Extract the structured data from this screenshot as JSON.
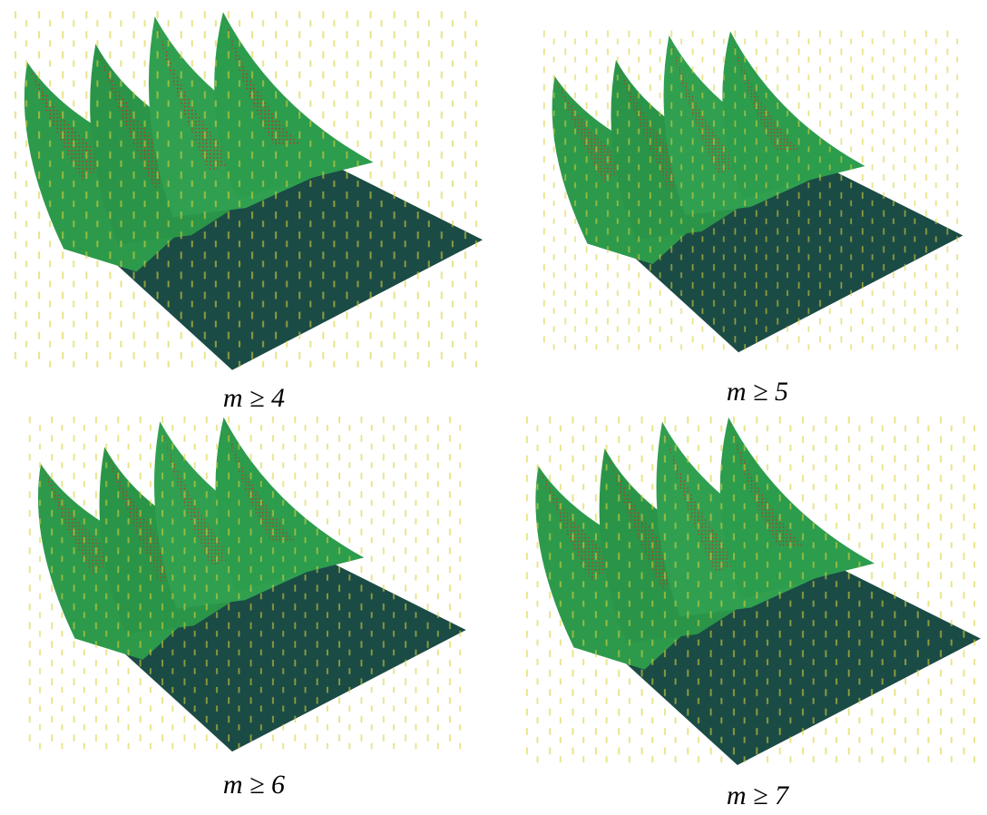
{
  "figure": {
    "captions": [
      "m ≥ 4",
      "m ≥ 5",
      "m ≥ 6",
      "m ≥ 7"
    ]
  }
}
